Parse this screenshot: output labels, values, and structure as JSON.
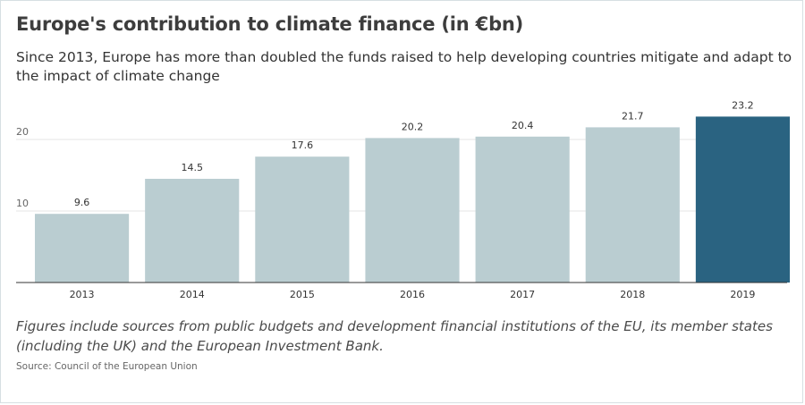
{
  "title": "Europe's contribution to climate finance (in €bn)",
  "subtitle": "Since 2013, Europe has more than doubled the funds raised to help developing countries mitigate and adapt to the impact of climate change",
  "note": "Figures include sources from public budgets and development financial institutions of the EU, its member states (including the UK) and the European Investment Bank.",
  "source": "Source: Council of the European Union",
  "chart_data": {
    "type": "bar",
    "categories": [
      "2013",
      "2014",
      "2015",
      "2016",
      "2017",
      "2018",
      "2019"
    ],
    "values": [
      9.6,
      14.5,
      17.6,
      20.2,
      20.4,
      21.7,
      23.2
    ],
    "data_labels": [
      "9.6",
      "14.5",
      "17.6",
      "20.2",
      "20.4",
      "21.7",
      "23.2"
    ],
    "yticks": [
      10,
      20
    ],
    "ylim": [
      0,
      23.2
    ],
    "grid": true,
    "highlight_index": 6,
    "colors": {
      "bar": "#bacdd1",
      "highlight": "#2a6381",
      "grid": "#e6e6e6",
      "axis": "#333333",
      "text": "#333333"
    }
  }
}
